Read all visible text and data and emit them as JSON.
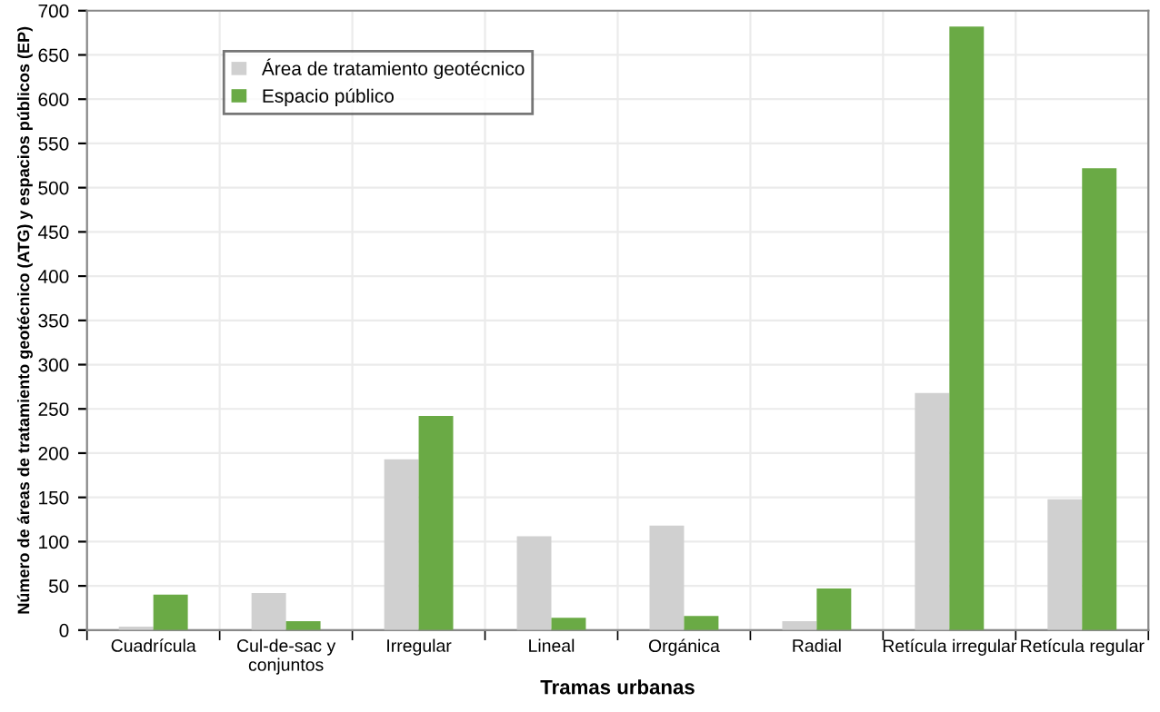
{
  "chart_data": {
    "type": "bar",
    "categories": [
      "Cuadrícula",
      "Cul-de-sac y\nconjuntos",
      "Irregular",
      "Lineal",
      "Orgánica",
      "Radial",
      "Retícula irregular",
      "Retícula regular"
    ],
    "series": [
      {
        "name": "Área de tratamiento geotécnico",
        "color": "#d0d0d0",
        "values": [
          4,
          42,
          193,
          106,
          118,
          10,
          268,
          148
        ]
      },
      {
        "name": "Espacio público",
        "color": "#6aaa45",
        "values": [
          40,
          10,
          242,
          14,
          16,
          47,
          682,
          522
        ]
      }
    ],
    "xlabel": "Tramas urbanas",
    "ylabel": "Número de áreas de tratamiento geotécnico (ATG) y espacios públicos (EP)",
    "ylim": [
      0,
      700
    ],
    "yticks": [
      0,
      50,
      100,
      150,
      200,
      250,
      300,
      350,
      400,
      450,
      500,
      550,
      600,
      650,
      700
    ],
    "grid": true,
    "legend": "top left"
  }
}
